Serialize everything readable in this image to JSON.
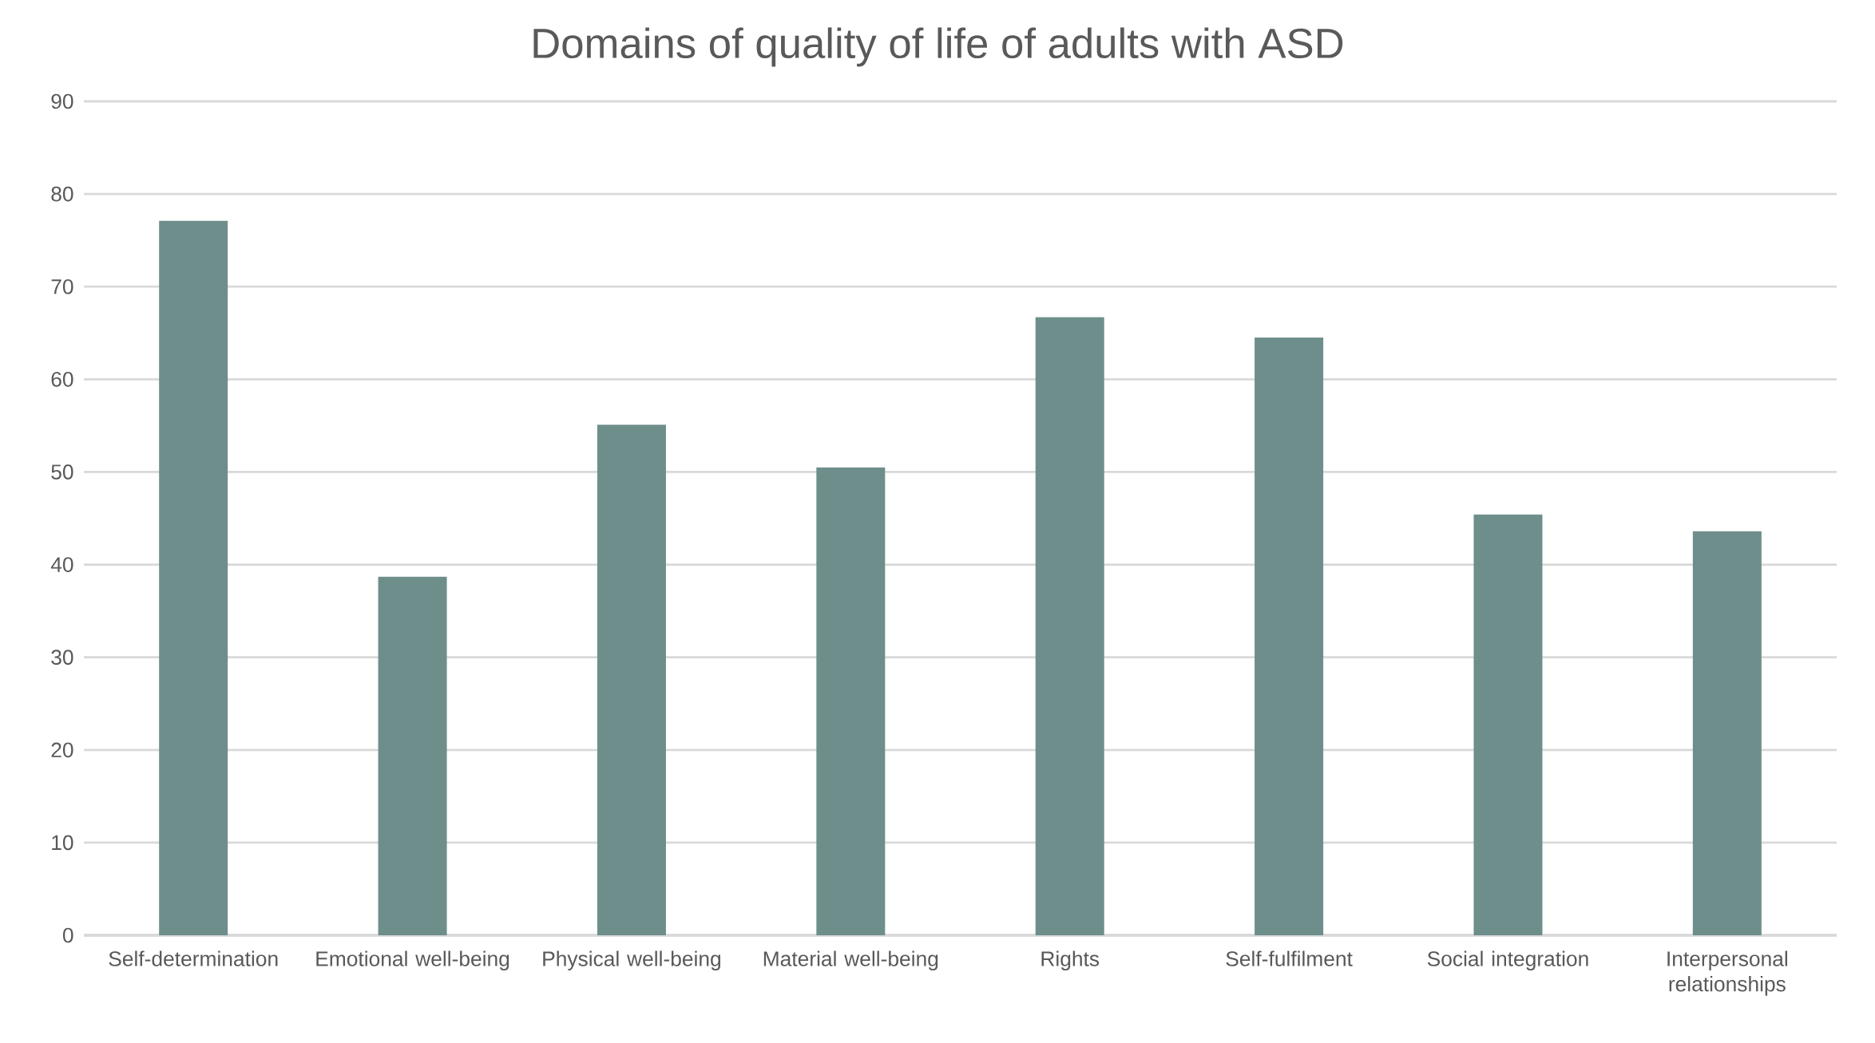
{
  "chart_data": {
    "type": "bar",
    "title": "Domains of quality of life of adults with ASD",
    "categories": [
      "Self-determination",
      "Emotional well-being",
      "Physical well-being",
      "Material well-being",
      "Rights",
      "Self-fulfilment",
      "Social integration",
      "Interpersonal relationships"
    ],
    "values": [
      77.1,
      38.7,
      55.1,
      50.5,
      66.7,
      64.5,
      45.4,
      43.6
    ],
    "color": "#6e8e8b",
    "ylim": [
      0,
      90
    ],
    "yticks": [
      0,
      10,
      20,
      30,
      40,
      50,
      60,
      70,
      80,
      90
    ],
    "grid": "y"
  }
}
